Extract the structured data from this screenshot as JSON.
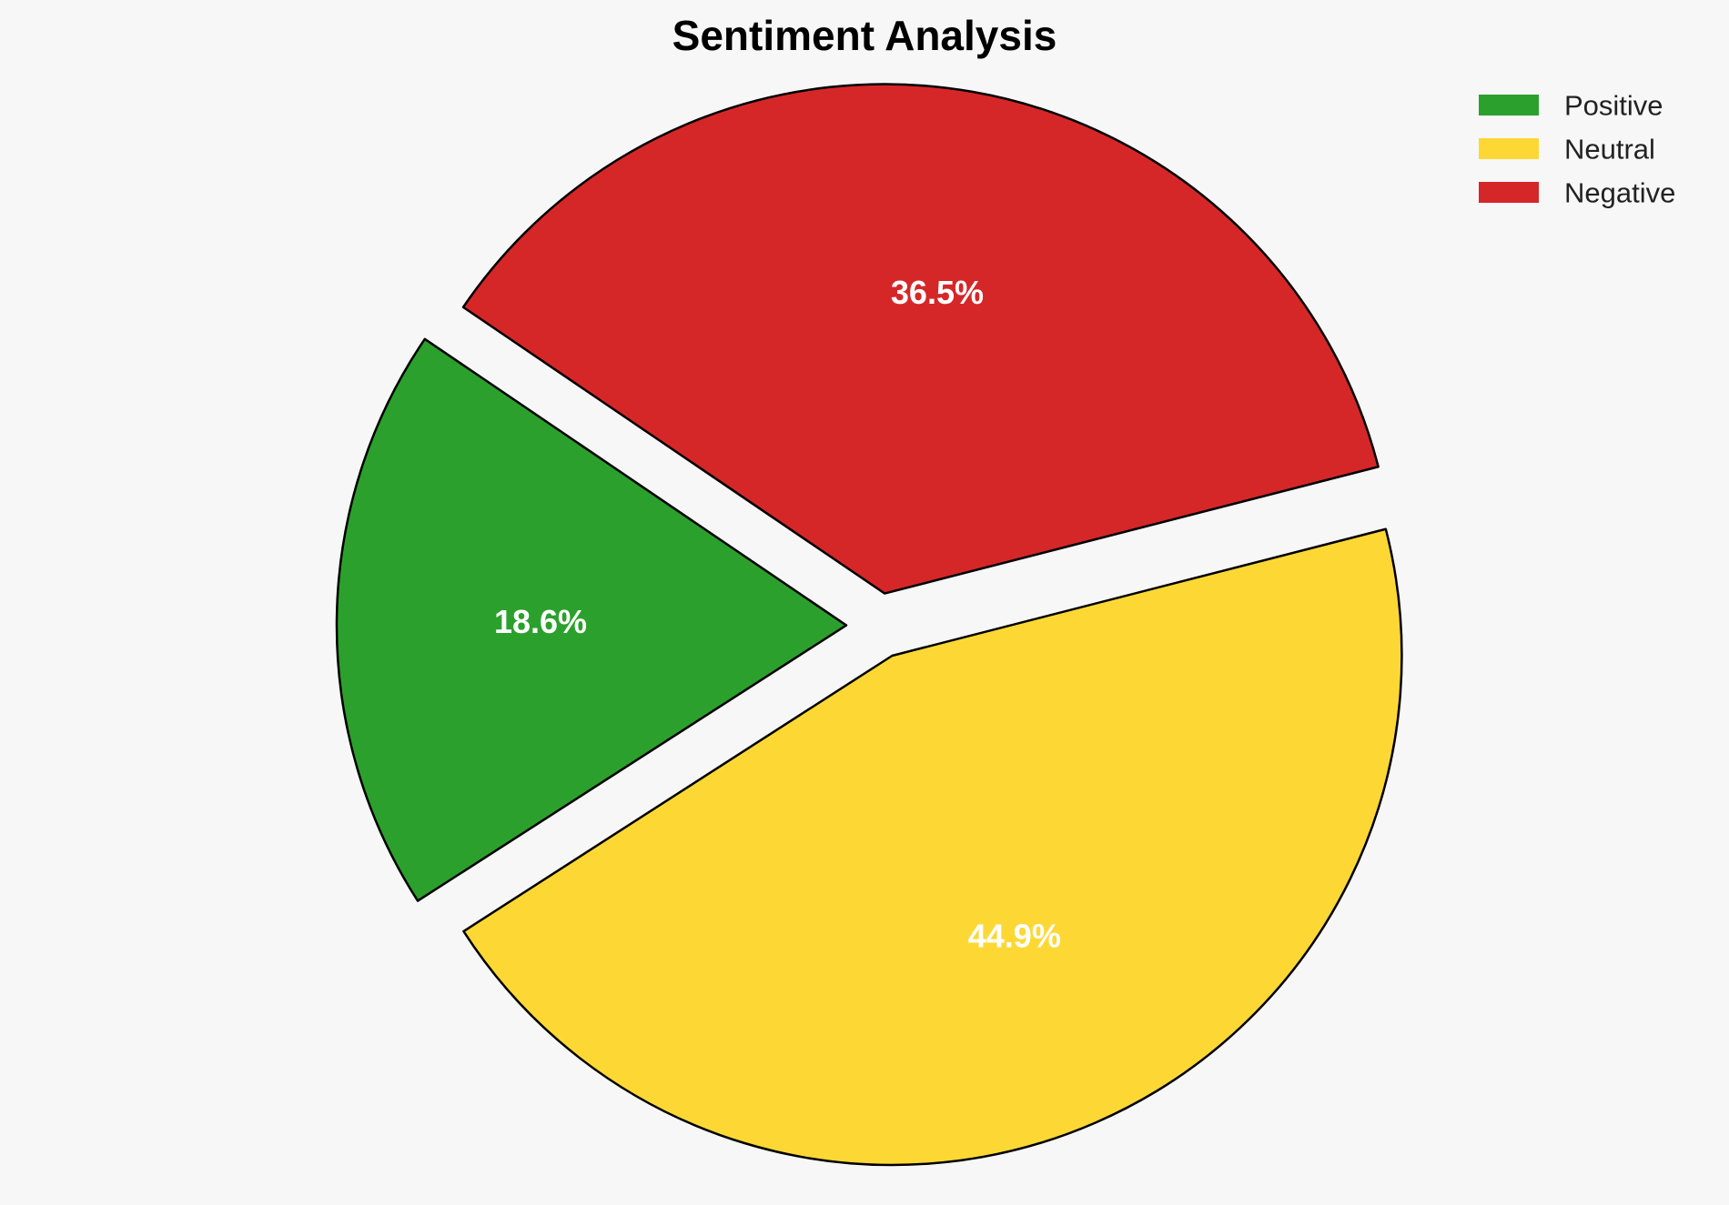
{
  "chart_data": {
    "type": "pie",
    "title": "Sentiment Analysis",
    "categories": [
      "Positive",
      "Neutral",
      "Negative"
    ],
    "values": [
      18.6,
      44.9,
      36.5
    ],
    "value_labels": [
      "18.6%",
      "44.9%",
      "36.5%"
    ],
    "colors": [
      "#2ca02c",
      "#fdd835",
      "#d62728"
    ],
    "exploded": true,
    "legend_position": "top-right",
    "edge_color": "#000000"
  }
}
